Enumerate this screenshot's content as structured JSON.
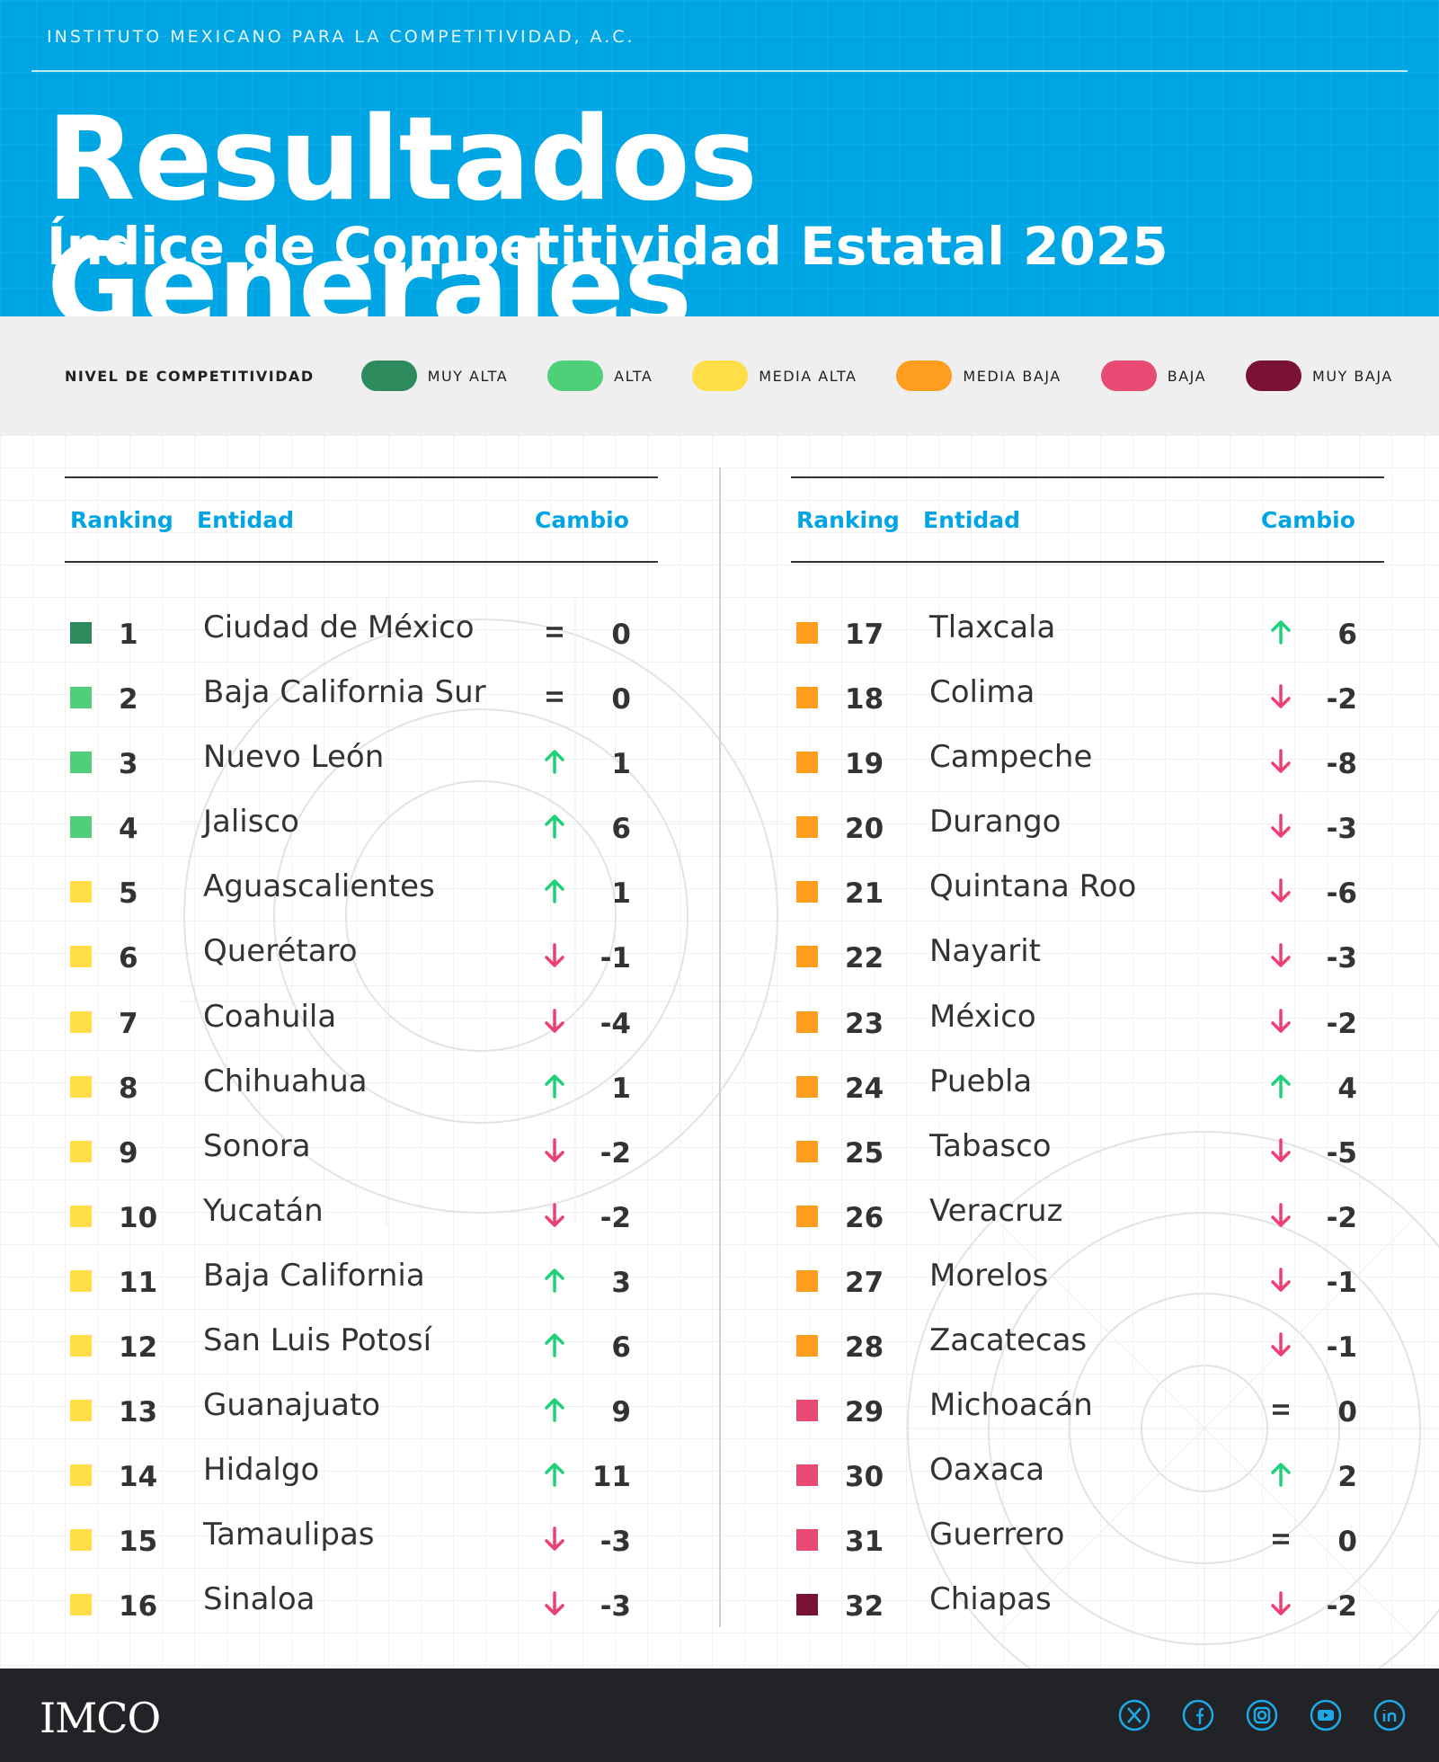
{
  "header": {
    "org": "INSTITUTO MEXICANO PARA LA COMPETITIVIDAD, A.C.",
    "title": "Resultados Generales",
    "subtitle": "Índice de Competitividad Estatal 2025"
  },
  "legend": {
    "title": "NIVEL DE COMPETITIVIDAD",
    "items": [
      {
        "label": "MUY ALTA",
        "color": "#2e8b5e"
      },
      {
        "label": "ALTA",
        "color": "#4fcf78"
      },
      {
        "label": "MEDIA ALTA",
        "color": "#ffde47"
      },
      {
        "label": "MEDIA BAJA",
        "color": "#ff9d1f"
      },
      {
        "label": "BAJA",
        "color": "#e94a73"
      },
      {
        "label": "MUY BAJA",
        "color": "#7a1233"
      }
    ]
  },
  "table_headers": {
    "ranking": "Ranking",
    "entidad": "Entidad",
    "cambio": "Cambio"
  },
  "colors": {
    "up": "#1fd17a",
    "down": "#ee3f74",
    "text": "#333333",
    "accent": "#00a5e3"
  },
  "rows": [
    {
      "rank": "1",
      "state": "Ciudad de México",
      "level": 0,
      "dir": "eq",
      "change": "0"
    },
    {
      "rank": "2",
      "state": "Baja California Sur",
      "level": 1,
      "dir": "eq",
      "change": "0"
    },
    {
      "rank": "3",
      "state": "Nuevo León",
      "level": 1,
      "dir": "up",
      "change": "1"
    },
    {
      "rank": "4",
      "state": "Jalisco",
      "level": 1,
      "dir": "up",
      "change": "6"
    },
    {
      "rank": "5",
      "state": "Aguascalientes",
      "level": 2,
      "dir": "up",
      "change": "1"
    },
    {
      "rank": "6",
      "state": "Querétaro",
      "level": 2,
      "dir": "down",
      "change": "-1"
    },
    {
      "rank": "7",
      "state": "Coahuila",
      "level": 2,
      "dir": "down",
      "change": "-4"
    },
    {
      "rank": "8",
      "state": "Chihuahua",
      "level": 2,
      "dir": "up",
      "change": "1"
    },
    {
      "rank": "9",
      "state": "Sonora",
      "level": 2,
      "dir": "down",
      "change": "-2"
    },
    {
      "rank": "10",
      "state": "Yucatán",
      "level": 2,
      "dir": "down",
      "change": "-2"
    },
    {
      "rank": "11",
      "state": "Baja California",
      "level": 2,
      "dir": "up",
      "change": "3"
    },
    {
      "rank": "12",
      "state": "San Luis Potosí",
      "level": 2,
      "dir": "up",
      "change": "6"
    },
    {
      "rank": "13",
      "state": "Guanajuato",
      "level": 2,
      "dir": "up",
      "change": "9"
    },
    {
      "rank": "14",
      "state": "Hidalgo",
      "level": 2,
      "dir": "up",
      "change": "11"
    },
    {
      "rank": "15",
      "state": "Tamaulipas",
      "level": 2,
      "dir": "down",
      "change": "-3"
    },
    {
      "rank": "16",
      "state": "Sinaloa",
      "level": 2,
      "dir": "down",
      "change": "-3"
    },
    {
      "rank": "17",
      "state": "Tlaxcala",
      "level": 3,
      "dir": "up",
      "change": "6"
    },
    {
      "rank": "18",
      "state": "Colima",
      "level": 3,
      "dir": "down",
      "change": "-2"
    },
    {
      "rank": "19",
      "state": "Campeche",
      "level": 3,
      "dir": "down",
      "change": "-8"
    },
    {
      "rank": "20",
      "state": "Durango",
      "level": 3,
      "dir": "down",
      "change": "-3"
    },
    {
      "rank": "21",
      "state": "Quintana Roo",
      "level": 3,
      "dir": "down",
      "change": "-6"
    },
    {
      "rank": "22",
      "state": "Nayarit",
      "level": 3,
      "dir": "down",
      "change": "-3"
    },
    {
      "rank": "23",
      "state": "México",
      "level": 3,
      "dir": "down",
      "change": "-2"
    },
    {
      "rank": "24",
      "state": "Puebla",
      "level": 3,
      "dir": "up",
      "change": "4"
    },
    {
      "rank": "25",
      "state": "Tabasco",
      "level": 3,
      "dir": "down",
      "change": "-5"
    },
    {
      "rank": "26",
      "state": "Veracruz",
      "level": 3,
      "dir": "down",
      "change": "-2"
    },
    {
      "rank": "27",
      "state": "Morelos",
      "level": 3,
      "dir": "down",
      "change": "-1"
    },
    {
      "rank": "28",
      "state": "Zacatecas",
      "level": 3,
      "dir": "down",
      "change": "-1"
    },
    {
      "rank": "29",
      "state": "Michoacán",
      "level": 4,
      "dir": "eq",
      "change": "0"
    },
    {
      "rank": "30",
      "state": "Oaxaca",
      "level": 4,
      "dir": "up",
      "change": "2"
    },
    {
      "rank": "31",
      "state": "Guerrero",
      "level": 4,
      "dir": "eq",
      "change": "0"
    },
    {
      "rank": "32",
      "state": "Chiapas",
      "level": 5,
      "dir": "down",
      "change": "-2"
    }
  ],
  "footer": {
    "logo": "IMCO",
    "socials": [
      "x-icon",
      "facebook-icon",
      "instagram-icon",
      "youtube-icon",
      "linkedin-icon"
    ]
  }
}
